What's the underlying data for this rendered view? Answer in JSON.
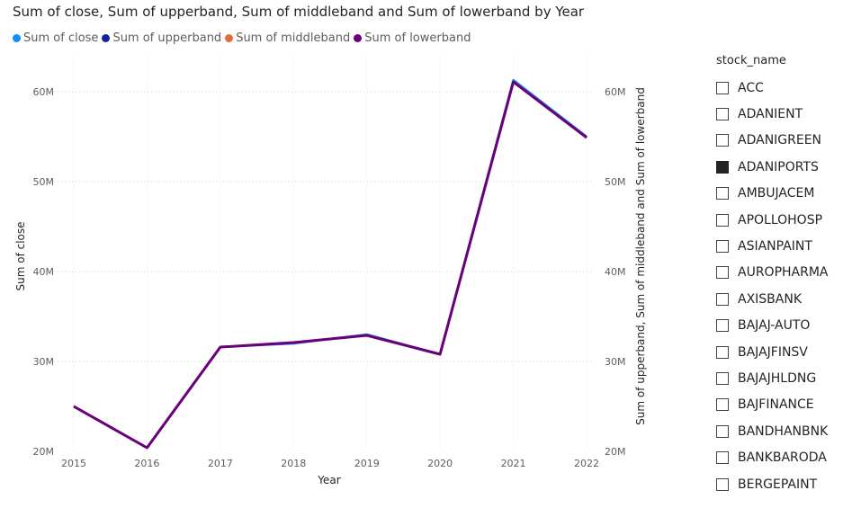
{
  "chart_data": {
    "type": "line",
    "title": "Sum of close, Sum of upperband, Sum of middleband and Sum of lowerband by Year",
    "xlabel": "Year",
    "ylabel": "Sum of close",
    "y2label": "Sum of upperband, Sum of middleband and Sum of lowerband",
    "categories": [
      "2015",
      "2016",
      "2017",
      "2018",
      "2019",
      "2020",
      "2021",
      "2022"
    ],
    "ylim": [
      20000000,
      63000000
    ],
    "yticks": [
      "20M",
      "30M",
      "40M",
      "50M",
      "60M"
    ],
    "ytick_values": [
      20000000,
      30000000,
      40000000,
      50000000,
      60000000
    ],
    "grid": true,
    "legend_position": "top-left",
    "series": [
      {
        "name": "Sum of close",
        "color": "#118DFF",
        "values": [
          25000000,
          20400000,
          31600000,
          32000000,
          33000000,
          30800000,
          61300000,
          55000000
        ]
      },
      {
        "name": "Sum of upperband",
        "color": "#12239E",
        "values": [
          25000000,
          20400000,
          31600000,
          32100000,
          32900000,
          30800000,
          61100000,
          54900000
        ]
      },
      {
        "name": "Sum of middleband",
        "color": "#E66C37",
        "values": [
          25000000,
          20400000,
          31600000,
          32100000,
          32900000,
          30800000,
          61100000,
          54900000
        ]
      },
      {
        "name": "Sum of lowerband",
        "color": "#6B007B",
        "values": [
          25000000,
          20400000,
          31600000,
          32100000,
          32900000,
          30800000,
          61100000,
          54900000
        ]
      }
    ]
  },
  "slicer": {
    "title": "stock_name",
    "items": [
      {
        "label": "ACC",
        "checked": false
      },
      {
        "label": "ADANIENT",
        "checked": false
      },
      {
        "label": "ADANIGREEN",
        "checked": false
      },
      {
        "label": "ADANIPORTS",
        "checked": true
      },
      {
        "label": "AMBUJACEM",
        "checked": false
      },
      {
        "label": "APOLLOHOSP",
        "checked": false
      },
      {
        "label": "ASIANPAINT",
        "checked": false
      },
      {
        "label": "AUROPHARMA",
        "checked": false
      },
      {
        "label": "AXISBANK",
        "checked": false
      },
      {
        "label": "BAJAJ-AUTO",
        "checked": false
      },
      {
        "label": "BAJAJFINSV",
        "checked": false
      },
      {
        "label": "BAJAJHLDNG",
        "checked": false
      },
      {
        "label": "BAJFINANCE",
        "checked": false
      },
      {
        "label": "BANDHANBNK",
        "checked": false
      },
      {
        "label": "BANKBARODA",
        "checked": false
      },
      {
        "label": "BERGEPAINT",
        "checked": false
      }
    ]
  }
}
